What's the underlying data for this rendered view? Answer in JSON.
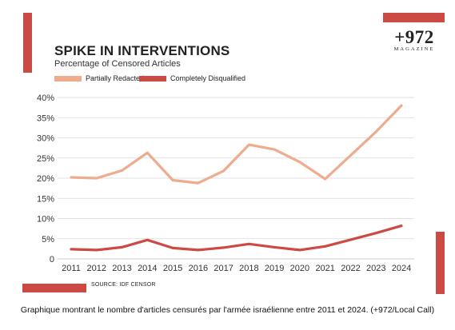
{
  "title": "SPIKE IN INTERVENTIONS",
  "subtitle": "Percentage of Censored Articles",
  "logo": {
    "main": "+972",
    "sub": "MAGAZINE"
  },
  "source": "SOURCE: IDF CENSOR",
  "caption": "Graphique montrant le nombre d'articles censurés par l'armée israélienne entre 2011 et 2024. (+972/Local Call)",
  "colors": {
    "accent": "#cc4a44",
    "partial": "#eeab8e",
    "complete": "#cc4a44",
    "grid": "#d9d9d9"
  },
  "chart_data": {
    "type": "line",
    "x": [
      2011,
      2012,
      2013,
      2014,
      2015,
      2016,
      2017,
      2018,
      2019,
      2020,
      2021,
      2022,
      2023,
      2024
    ],
    "x_tick_labels": [
      "2011",
      "2012",
      "2013",
      "2014",
      "2015",
      "2016",
      "2017",
      "2018",
      "2019",
      "2020",
      "2021",
      "2022",
      "2023",
      "2024"
    ],
    "y_tick_labels": [
      "0",
      "5%",
      "10%",
      "15%",
      "20%",
      "25%",
      "30%",
      "35%",
      "40%"
    ],
    "y_ticks": [
      0,
      5,
      10,
      15,
      20,
      25,
      30,
      35,
      40
    ],
    "ylim": [
      0,
      40
    ],
    "grid": true,
    "legend_position": "top-left",
    "series": [
      {
        "name": "Partially Redacted",
        "color": "#eeab8e",
        "values": [
          20.2,
          20.0,
          21.9,
          26.3,
          19.5,
          18.8,
          21.8,
          28.3,
          27.1,
          24.0,
          19.8,
          null,
          31.5,
          38.0
        ]
      },
      {
        "name": "Completely Disqualified",
        "color": "#cc4a44",
        "values": [
          2.4,
          2.2,
          2.9,
          4.7,
          2.7,
          2.2,
          2.8,
          3.7,
          2.9,
          2.2,
          3.1,
          null,
          6.4,
          8.2
        ]
      }
    ]
  }
}
